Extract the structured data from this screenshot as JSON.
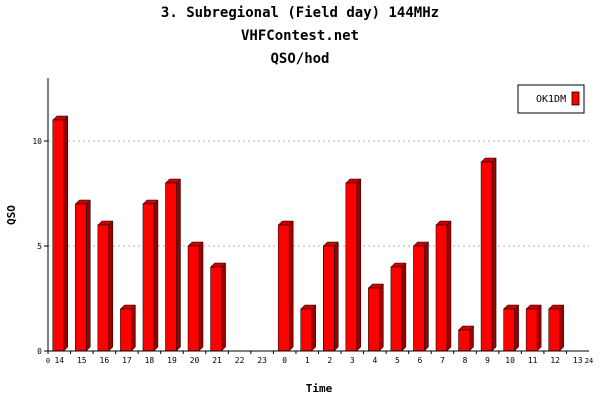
{
  "header": {
    "title": "3. Subregional (Field day) 144MHz",
    "subtitle": "VHFContest.net",
    "caption": "QSO/hod"
  },
  "chart_data": {
    "type": "bar",
    "title": "3. Subregional (Field day) 144MHz",
    "xlabel": "Time",
    "ylabel": "QSO",
    "ylim": [
      0,
      13
    ],
    "yticks": [
      0,
      5,
      10
    ],
    "x_edge_labels": [
      "0",
      "24"
    ],
    "categories": [
      "14",
      "15",
      "16",
      "17",
      "18",
      "19",
      "20",
      "21",
      "22",
      "23",
      "0",
      "1",
      "2",
      "3",
      "4",
      "5",
      "6",
      "7",
      "8",
      "9",
      "10",
      "11",
      "12",
      "13"
    ],
    "series": [
      {
        "name": "OK1DM",
        "values": [
          11,
          7,
          6,
          2,
          7,
          8,
          5,
          4,
          0,
          0,
          6,
          2,
          5,
          8,
          3,
          4,
          5,
          6,
          1,
          9,
          2,
          2,
          2,
          0
        ]
      }
    ],
    "grid": true,
    "legend": "top-right",
    "colors": {
      "bar_front": "#ff0000",
      "bar_top": "#cc0000",
      "bar_side": "#990000",
      "grid": "#b0b0b0"
    }
  }
}
